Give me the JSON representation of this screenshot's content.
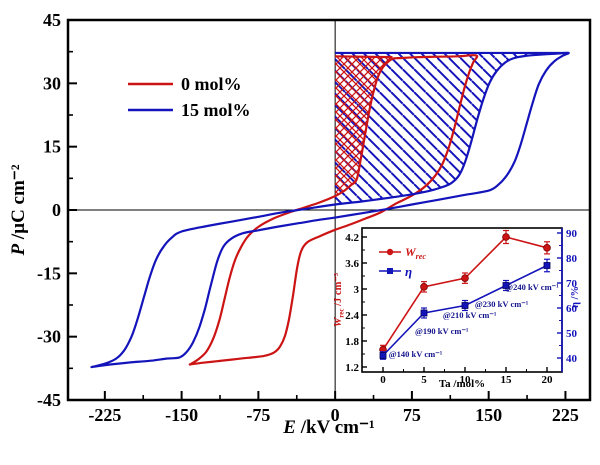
{
  "chart_data": [
    {
      "id": "main",
      "type": "line",
      "description": "Polarization-electric field (P-E) hysteresis loops for two compositions with hatched recoverable-energy areas",
      "xlabel": {
        "italic": "E",
        "rest": " /kV cm⁻¹"
      },
      "ylabel": {
        "italic": "P",
        "rest": " /µC cm⁻²"
      },
      "xlim": [
        -261,
        249
      ],
      "ylim": [
        -45,
        45
      ],
      "x_ticks": [
        -225,
        -150,
        -75,
        0,
        75,
        150,
        225
      ],
      "y_ticks": [
        45,
        30,
        15,
        0,
        -15,
        -30,
        -45
      ],
      "x_minor_ticks": [
        -187.5,
        -112.5,
        -37.5,
        37.5,
        112.5,
        187.5
      ],
      "y_minor_ticks": [
        37.5,
        22.5,
        7.5,
        -7.5,
        -22.5,
        -37.5
      ],
      "grid": false,
      "legend": {
        "position": "upper-left-inside",
        "items": [
          {
            "label": "0 mol%",
            "color": "#cc1414"
          },
          {
            "label": "15 mol%",
            "color": "#1414bb"
          }
        ]
      },
      "series": [
        {
          "name": "0 mol%",
          "color": "#cc1414",
          "emax_kv_cm": 140,
          "pmax_uc_cm2": 36.6,
          "ascending": [
            [
              -142,
              -36.6
            ],
            [
              -130,
              -36.2
            ],
            [
              -115,
              -35.8
            ],
            [
              -100,
              -35.4
            ],
            [
              -85,
              -35
            ],
            [
              -70,
              -34.6
            ],
            [
              -60,
              -33.8
            ],
            [
              -54,
              -32.4
            ],
            [
              -49,
              -29.8
            ],
            [
              -45,
              -25.8
            ],
            [
              -41,
              -20
            ],
            [
              -37,
              -13.5
            ],
            [
              -33,
              -9.6
            ],
            [
              -27,
              -7.6
            ],
            [
              -15,
              -6.2
            ],
            [
              0,
              -4.7
            ],
            [
              15,
              -3.4
            ],
            [
              30,
              -2
            ],
            [
              45,
              -0.5
            ],
            [
              60,
              1.6
            ],
            [
              75,
              3.4
            ],
            [
              88,
              5.6
            ],
            [
              98,
              8.2
            ],
            [
              105,
              11
            ],
            [
              111,
              14.8
            ],
            [
              116,
              19
            ],
            [
              121,
              23.8
            ],
            [
              126,
              28.6
            ],
            [
              131,
              32.6
            ],
            [
              135,
              35
            ],
            [
              138,
              36.6
            ]
          ],
          "descending": [
            [
              138,
              36.6
            ],
            [
              120,
              36.4
            ],
            [
              100,
              36.3
            ],
            [
              80,
              36.2
            ],
            [
              65,
              36
            ],
            [
              56,
              35.8
            ],
            [
              50,
              34.7
            ],
            [
              45,
              33.2
            ],
            [
              41,
              31
            ],
            [
              37,
              27.5
            ],
            [
              33,
              23
            ],
            [
              29,
              17.5
            ],
            [
              25,
              12
            ],
            [
              21,
              7.2
            ],
            [
              15,
              5.8
            ],
            [
              8,
              4.4
            ],
            [
              0,
              3.3
            ],
            [
              -15,
              1.8
            ],
            [
              -30,
              0.6
            ],
            [
              -45,
              -0.6
            ],
            [
              -60,
              -2
            ],
            [
              -75,
              -4
            ],
            [
              -85,
              -6.2
            ],
            [
              -92,
              -8.8
            ],
            [
              -98,
              -12
            ],
            [
              -103,
              -16
            ],
            [
              -108,
              -21
            ],
            [
              -113,
              -26
            ],
            [
              -119,
              -30.4
            ],
            [
              -126,
              -33.6
            ],
            [
              -134,
              -35.4
            ],
            [
              -142,
              -36.6
            ]
          ],
          "hatch": {
            "style": "cross",
            "cap_line": [
              [
                0,
                36.4
              ],
              [
                56,
                36.2
              ]
            ],
            "max_e": 56
          }
        },
        {
          "name": "15 mol%",
          "color": "#1414bb",
          "emax_kv_cm": 230,
          "pmax_uc_cm2": 37.2,
          "ascending": [
            [
              -238,
              -37.2
            ],
            [
              -220,
              -36.6
            ],
            [
              -200,
              -36.1
            ],
            [
              -180,
              -35.7
            ],
            [
              -165,
              -35.2
            ],
            [
              -152,
              -34.9
            ],
            [
              -145,
              -33.6
            ],
            [
              -139,
              -31.4
            ],
            [
              -133,
              -28
            ],
            [
              -127,
              -23.2
            ],
            [
              -121,
              -17.4
            ],
            [
              -115,
              -12
            ],
            [
              -109,
              -8.6
            ],
            [
              -101,
              -6.7
            ],
            [
              -90,
              -5.5
            ],
            [
              -75,
              -4.8
            ],
            [
              -55,
              -3.9
            ],
            [
              -35,
              -3.1
            ],
            [
              -15,
              -2.3
            ],
            [
              0,
              -1.8
            ],
            [
              25,
              -0.8
            ],
            [
              50,
              0.2
            ],
            [
              75,
              1.3
            ],
            [
              100,
              2.4
            ],
            [
              125,
              3.5
            ],
            [
              150,
              4.6
            ],
            [
              160,
              6.1
            ],
            [
              168,
              8.3
            ],
            [
              175,
              11.3
            ],
            [
              181,
              15.3
            ],
            [
              187,
              20.3
            ],
            [
              193,
              25.4
            ],
            [
              199,
              29.8
            ],
            [
              206,
              33
            ],
            [
              214,
              35.2
            ],
            [
              222,
              36.5
            ],
            [
              228,
              37.2
            ]
          ],
          "descending": [
            [
              228,
              37.2
            ],
            [
              214,
              37
            ],
            [
              200,
              36.8
            ],
            [
              186,
              36.5
            ],
            [
              175,
              36
            ],
            [
              166,
              34.9
            ],
            [
              158,
              33
            ],
            [
              151,
              30.2
            ],
            [
              145,
              26.4
            ],
            [
              139,
              21.6
            ],
            [
              133,
              16.2
            ],
            [
              127,
              11.4
            ],
            [
              121,
              8.2
            ],
            [
              113,
              6.3
            ],
            [
              102,
              5.2
            ],
            [
              88,
              4.3
            ],
            [
              70,
              3.5
            ],
            [
              50,
              2.8
            ],
            [
              25,
              2
            ],
            [
              0,
              1.3
            ],
            [
              -25,
              0.4
            ],
            [
              -50,
              -0.5
            ],
            [
              -75,
              -1.6
            ],
            [
              -100,
              -2.7
            ],
            [
              -125,
              -3.8
            ],
            [
              -150,
              -5.1
            ],
            [
              -160,
              -6.6
            ],
            [
              -168,
              -8.8
            ],
            [
              -175,
              -11.8
            ],
            [
              -181,
              -15.8
            ],
            [
              -187,
              -20.8
            ],
            [
              -193,
              -25.8
            ],
            [
              -199,
              -30
            ],
            [
              -206,
              -33.2
            ],
            [
              -214,
              -35.2
            ],
            [
              -225,
              -36.4
            ],
            [
              -238,
              -37.2
            ]
          ],
          "hatch": {
            "style": "diagonal",
            "cap_line": [
              [
                0,
                37.2
              ],
              [
                228,
                37.2
              ]
            ],
            "max_e": 228
          }
        }
      ]
    },
    {
      "id": "inset",
      "type": "line",
      "description": "Recoverable energy density and efficiency versus Ta content",
      "xlabel": "Ta /mol%",
      "ylabel_left": {
        "main": "W",
        "sub": "rec",
        "rest": " /J cm⁻³"
      },
      "ylabel_right": "η /%",
      "x": [
        0,
        5,
        10,
        15,
        20
      ],
      "x_ticks": [
        0,
        5,
        10,
        15,
        20
      ],
      "left_ticks": [
        4.2,
        3.6,
        3.0,
        2.4,
        1.8,
        1.2
      ],
      "right_ticks": [
        90,
        80,
        70,
        60,
        50,
        40
      ],
      "left_lim": [
        1.08,
        4.41
      ],
      "right_lim": [
        35,
        92
      ],
      "series": [
        {
          "name_main": "W",
          "name_sub": "rec",
          "axis": "left",
          "color": "#cc1414",
          "marker": "circle",
          "values": [
            1.6,
            3.05,
            3.25,
            4.2,
            3.95
          ],
          "errors": [
            0.1,
            0.12,
            0.12,
            0.15,
            0.14
          ]
        },
        {
          "name": "η",
          "axis": "right",
          "color": "#1414bb",
          "marker": "square",
          "values": [
            41,
            58,
            61,
            69,
            77
          ],
          "errors": [
            1.5,
            2,
            2,
            2,
            2.5
          ]
        }
      ],
      "annotations": [
        {
          "text": "@140 kV cm⁻¹",
          "ta": 0.7,
          "eta": 40.4
        },
        {
          "text": "@190 kV cm⁻¹",
          "ta": 3.9,
          "eta": 49.6
        },
        {
          "text": "@210 kV cm⁻¹",
          "ta": 7.3,
          "eta": 56.0
        },
        {
          "text": "@230 kV cm⁻¹",
          "ta": 11.2,
          "eta": 60.4
        },
        {
          "text": "@240 kV cm⁻¹",
          "ta": 14.9,
          "eta": 67.2
        }
      ],
      "annotation_color": "#14148c"
    }
  ],
  "colors": {
    "red": "#cc1414",
    "blue": "#1414bb",
    "axis": "#000000",
    "navy": "#14148c"
  }
}
